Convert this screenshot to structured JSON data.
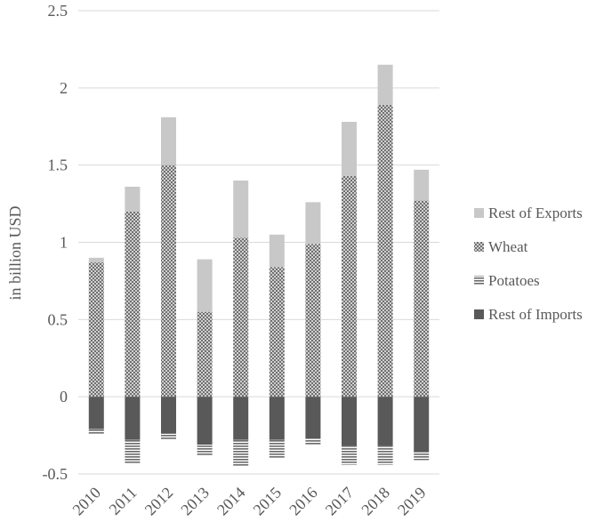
{
  "chart_data": {
    "type": "bar",
    "stacked": true,
    "categories": [
      "2010",
      "2011",
      "2012",
      "2013",
      "2014",
      "2015",
      "2016",
      "2017",
      "2018",
      "2019"
    ],
    "ylabel": "in billion USD",
    "ylim": [
      -0.5,
      2.5
    ],
    "yticks": [
      "-0.5",
      "0",
      "0.5",
      "1",
      "1.5",
      "2",
      "2.5"
    ],
    "grid": true,
    "legend_position": "right",
    "series": [
      {
        "name": "Rest of Exports",
        "color": "#c8c8c8",
        "pattern": "solid",
        "values": [
          0.03,
          0.16,
          0.31,
          0.34,
          0.37,
          0.21,
          0.27,
          0.35,
          0.26,
          0.2
        ]
      },
      {
        "name": "Wheat",
        "color": "#a6a6a6",
        "pattern": "checker",
        "values": [
          0.87,
          1.2,
          1.5,
          0.55,
          1.03,
          0.84,
          0.99,
          1.43,
          1.89,
          1.27
        ]
      },
      {
        "name": "Potatoes",
        "color": "#8c8c8c",
        "pattern": "horizontal-lines",
        "values": [
          -0.03,
          -0.15,
          -0.04,
          -0.07,
          -0.17,
          -0.12,
          -0.04,
          -0.12,
          -0.12,
          -0.05
        ]
      },
      {
        "name": "Rest of Imports",
        "color": "#595959",
        "pattern": "solid",
        "values": [
          -0.21,
          -0.28,
          -0.24,
          -0.31,
          -0.28,
          -0.28,
          -0.27,
          -0.32,
          -0.32,
          -0.36
        ]
      }
    ]
  }
}
